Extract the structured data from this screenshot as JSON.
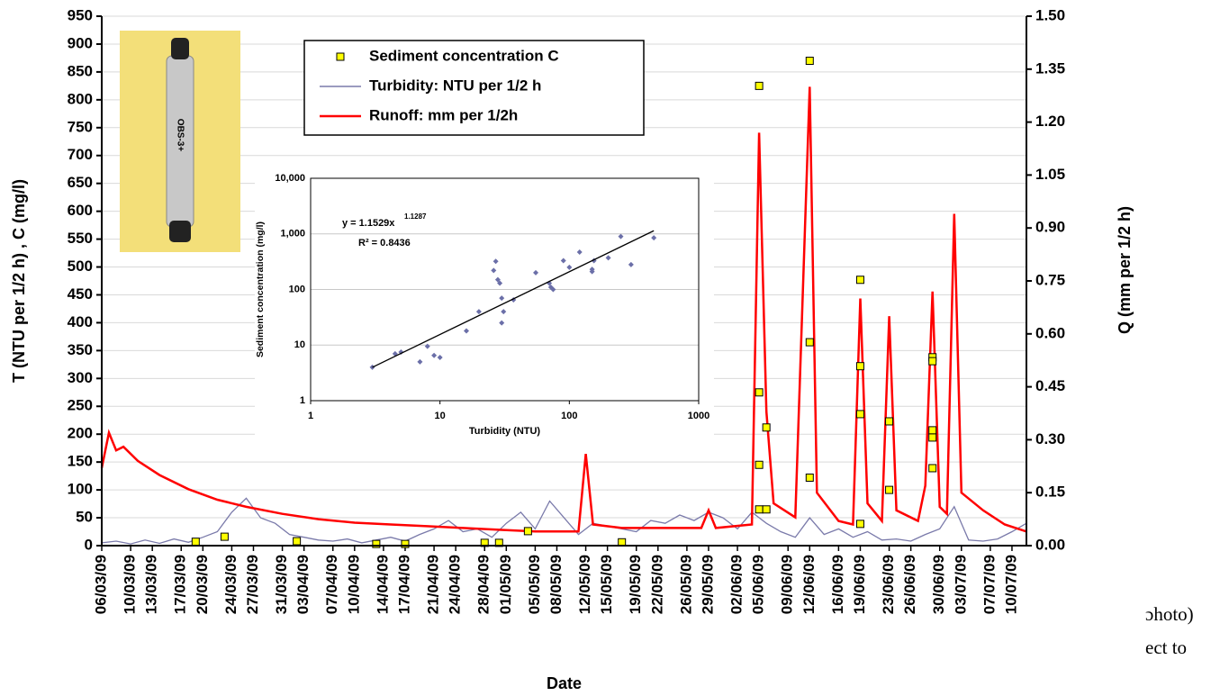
{
  "chart_data": [
    {
      "type": "line",
      "xlabel": "Date",
      "ylabel": "T (NTU per 1/2 h) ,  C (mg/l)",
      "y2label": "Q (mm per 1/2 h)",
      "xlim": [
        "06/03/09",
        "12/07/09"
      ],
      "xticks": [
        "06/03/09",
        "10/03/09",
        "13/03/09",
        "17/03/09",
        "20/03/09",
        "24/03/09",
        "27/03/09",
        "31/03/09",
        "03/04/09",
        "07/04/09",
        "10/04/09",
        "14/04/09",
        "17/04/09",
        "21/04/09",
        "24/04/09",
        "28/04/09",
        "01/05/09",
        "05/05/09",
        "08/05/09",
        "12/05/09",
        "15/05/09",
        "19/05/09",
        "22/05/09",
        "26/05/09",
        "29/05/09",
        "02/06/09",
        "05/06/09",
        "09/06/09",
        "12/06/09",
        "16/06/09",
        "19/06/09",
        "23/06/09",
        "26/06/09",
        "30/06/09",
        "03/07/09",
        "07/07/09",
        "10/07/09"
      ],
      "ylim": [
        0,
        950
      ],
      "yticks": [
        0,
        50,
        100,
        150,
        200,
        250,
        300,
        350,
        400,
        450,
        500,
        550,
        600,
        650,
        700,
        750,
        800,
        850,
        900,
        950
      ],
      "y2lim": [
        0,
        1.5
      ],
      "y2ticks": [
        {
          "value": 0,
          "label": "0.00"
        },
        0.15,
        {
          "value": 0.3,
          "label": "0.30"
        },
        0.45,
        {
          "value": 0.6,
          "label": "0.60"
        },
        0.75,
        {
          "value": 0.9,
          "label": "0.90"
        },
        1.05,
        {
          "value": 1.2,
          "label": "1.20"
        },
        1.35,
        {
          "value": 1.5,
          "label": "1.50"
        }
      ],
      "grid": true,
      "legend": "upper center",
      "series": [
        {
          "name": "Sediment concentration C",
          "type": "scatter",
          "marker": "square",
          "color": "#ffff00",
          "x": [
            "19/03/09",
            "23/03/09",
            "02/04/09",
            "13/04/09",
            "17/04/09",
            "28/04/09",
            "30/04/09",
            "04/05/09",
            "17/05/09",
            "05/06/09",
            "05/06/09",
            "05/06/09",
            "05/06/09",
            "06/06/09",
            "06/06/09",
            "12/06/09",
            "12/06/09",
            "12/06/09",
            "19/06/09",
            "19/06/09",
            "19/06/09",
            "19/06/09",
            "23/06/09",
            "23/06/09",
            "29/06/09",
            "29/06/09",
            "29/06/09",
            "29/06/09",
            "29/06/09"
          ],
          "values": [
            7,
            16,
            8,
            3,
            3,
            5,
            5,
            26,
            6,
            825,
            275,
            145,
            65,
            212,
            65,
            870,
            365,
            122,
            477,
            322,
            236,
            39,
            223,
            100,
            338,
            331,
            207,
            194,
            139
          ]
        },
        {
          "name": "Turbidity: NTU per 1/2 h",
          "type": "line",
          "color": "#7a7aaa",
          "x": [
            "06/03/09",
            "08/03/09",
            "10/03/09",
            "12/03/09",
            "14/03/09",
            "16/03/09",
            "18/03/09",
            "20/03/09",
            "22/03/09",
            "24/03/09",
            "26/03/09",
            "28/03/09",
            "30/03/09",
            "01/04/09",
            "03/04/09",
            "05/04/09",
            "07/04/09",
            "09/04/09",
            "11/04/09",
            "13/04/09",
            "15/04/09",
            "17/04/09",
            "19/04/09",
            "21/04/09",
            "23/04/09",
            "25/04/09",
            "27/04/09",
            "29/04/09",
            "01/05/09",
            "03/05/09",
            "05/05/09",
            "07/05/09",
            "09/05/09",
            "11/05/09",
            "13/05/09",
            "15/05/09",
            "17/05/09",
            "19/05/09",
            "21/05/09",
            "23/05/09",
            "25/05/09",
            "27/05/09",
            "29/05/09",
            "31/05/09",
            "02/06/09",
            "04/06/09",
            "06/06/09",
            "08/06/09",
            "10/06/09",
            "12/06/09",
            "14/06/09",
            "16/06/09",
            "18/06/09",
            "20/06/09",
            "22/06/09",
            "24/06/09",
            "26/06/09",
            "28/06/09",
            "30/06/09",
            "02/07/09",
            "04/07/09",
            "06/07/09",
            "08/07/09",
            "10/07/09",
            "12/07/09"
          ],
          "values": [
            5,
            8,
            3,
            10,
            4,
            12,
            6,
            15,
            25,
            60,
            85,
            50,
            40,
            20,
            15,
            10,
            8,
            12,
            5,
            10,
            15,
            8,
            20,
            30,
            45,
            25,
            30,
            15,
            40,
            60,
            30,
            80,
            50,
            20,
            40,
            35,
            30,
            25,
            45,
            40,
            55,
            45,
            60,
            50,
            30,
            60,
            40,
            25,
            15,
            50,
            20,
            30,
            15,
            25,
            10,
            12,
            8,
            20,
            30,
            70,
            10,
            8,
            12,
            25,
            40
          ]
        },
        {
          "name": "Runoff: mm per 1/2h",
          "type": "line",
          "axis": "y2",
          "color": "#ff0000",
          "x": [
            "06/03/09",
            "07/03/09",
            "08/03/09",
            "09/03/09",
            "11/03/09",
            "14/03/09",
            "18/03/09",
            "22/03/09",
            "26/03/09",
            "31/03/09",
            "05/04/09",
            "10/04/09",
            "15/04/09",
            "20/04/09",
            "25/04/09",
            "30/04/09",
            "05/05/09",
            "11/05/09",
            "12/05/09",
            "13/05/09",
            "17/05/09",
            "23/05/09",
            "28/05/09",
            "29/05/09",
            "30/05/09",
            "04/06/09",
            "05/06/09",
            "06/06/09",
            "07/06/09",
            "10/06/09",
            "12/06/09",
            "13/06/09",
            "16/06/09",
            "18/06/09",
            "19/06/09",
            "20/06/09",
            "22/06/09",
            "23/06/09",
            "24/06/09",
            "27/06/09",
            "28/06/09",
            "29/06/09",
            "30/06/09",
            "01/07/09",
            "02/07/09",
            "03/07/09",
            "06/07/09",
            "09/07/09",
            "12/07/09"
          ],
          "values": [
            0.22,
            0.32,
            0.27,
            0.28,
            0.24,
            0.2,
            0.16,
            0.13,
            0.11,
            0.09,
            0.075,
            0.065,
            0.06,
            0.055,
            0.05,
            0.045,
            0.04,
            0.04,
            0.26,
            0.06,
            0.05,
            0.05,
            0.05,
            0.1,
            0.05,
            0.06,
            1.17,
            0.38,
            0.12,
            0.08,
            1.3,
            0.15,
            0.07,
            0.06,
            0.7,
            0.12,
            0.07,
            0.65,
            0.1,
            0.07,
            0.17,
            0.72,
            0.11,
            0.09,
            0.94,
            0.15,
            0.1,
            0.06,
            0.04
          ]
        }
      ]
    },
    {
      "type": "scatter",
      "log_x": true,
      "log_y": true,
      "xlabel": "Turbidity (NTU)",
      "ylabel": "Sediment concentration (mg/l)",
      "xlim": [
        1,
        1000
      ],
      "xticks": [
        1,
        10,
        100,
        1000
      ],
      "ylim": [
        1,
        10000
      ],
      "yticks": [
        1,
        10,
        100,
        {
          "value": 1000,
          "label": "1,000"
        },
        {
          "value": 10000,
          "label": "10,000"
        }
      ],
      "grid": true,
      "color": "#6b6fa8",
      "x": [
        3,
        4.5,
        5,
        7,
        8,
        9,
        10,
        16,
        20,
        26,
        27,
        28,
        29,
        30,
        30,
        31,
        37,
        55,
        70,
        72,
        75,
        90,
        100,
        120,
        150,
        150,
        155,
        200,
        250,
        300,
        450
      ],
      "values": [
        4,
        7,
        7.5,
        5,
        9.5,
        6.5,
        6,
        18,
        40,
        220,
        320,
        150,
        130,
        70,
        25,
        40,
        65,
        200,
        130,
        110,
        100,
        330,
        250,
        470,
        230,
        210,
        330,
        370,
        900,
        280,
        850
      ],
      "trendline": {
        "coefficient": 1.1529,
        "exponent": 1.1287,
        "equation_label": "y = 1.1529x",
        "r_squared_label": "R² = 0.8436"
      }
    }
  ],
  "photo_label": "OBS-3+",
  "page_text": [
    "ɔhoto)",
    "ect to"
  ]
}
